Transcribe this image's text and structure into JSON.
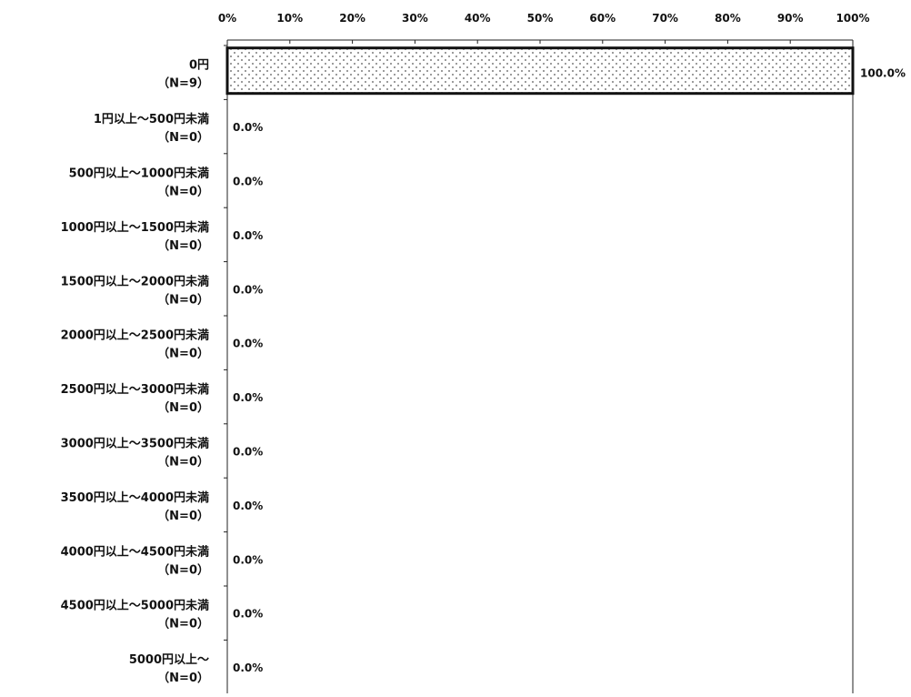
{
  "chart_data": {
    "type": "bar",
    "orientation": "horizontal",
    "title": "",
    "xlabel": "",
    "ylabel": "",
    "xlim": [
      0,
      100
    ],
    "x_ticks": [
      0,
      10,
      20,
      30,
      40,
      50,
      60,
      70,
      80,
      90,
      100
    ],
    "x_tick_labels": [
      "0%",
      "10%",
      "20%",
      "30%",
      "40%",
      "50%",
      "60%",
      "70%",
      "80%",
      "90%",
      "100%"
    ],
    "grid": false,
    "legend": "none",
    "categories": [
      {
        "label": "0円",
        "n_label": "（N=9）"
      },
      {
        "label": "1円以上～500円未満",
        "n_label": "（N=0）"
      },
      {
        "label": "500円以上～1000円未満",
        "n_label": "（N=0）"
      },
      {
        "label": "1000円以上～1500円未満",
        "n_label": "（N=0）"
      },
      {
        "label": "1500円以上～2000円未満",
        "n_label": "（N=0）"
      },
      {
        "label": "2000円以上～2500円未満",
        "n_label": "（N=0）"
      },
      {
        "label": "2500円以上～3000円未満",
        "n_label": "（N=0）"
      },
      {
        "label": "3000円以上～3500円未満",
        "n_label": "（N=0）"
      },
      {
        "label": "3500円以上～4000円未満",
        "n_label": "（N=0）"
      },
      {
        "label": "4000円以上～4500円未満",
        "n_label": "（N=0）"
      },
      {
        "label": "4500円以上～5000円未満",
        "n_label": "（N=0）"
      },
      {
        "label": "5000円以上～",
        "n_label": "（N=0）"
      }
    ],
    "values": [
      100,
      0,
      0,
      0,
      0,
      0,
      0,
      0,
      0,
      0,
      0,
      0
    ],
    "value_labels": [
      "100.0%",
      "0.0%",
      "0.0%",
      "0.0%",
      "0.0%",
      "0.0%",
      "0.0%",
      "0.0%",
      "0.0%",
      "0.0%",
      "0.0%",
      "0.0%"
    ],
    "bar_fill": "dotted",
    "colors": {
      "bar_border": "#111111",
      "bar_dots": "#555555",
      "bar_background": "#ffffff",
      "axis": "#222222"
    }
  }
}
